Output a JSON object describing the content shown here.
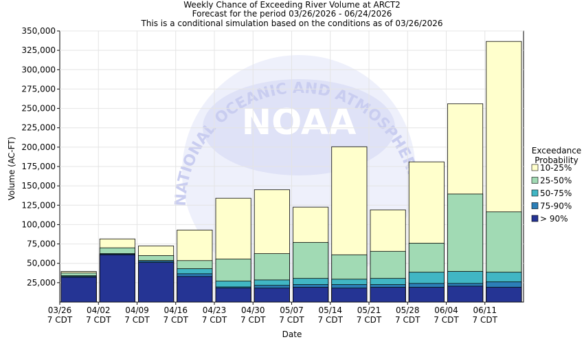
{
  "chart_data": {
    "type": "overlapping-bar",
    "title": "Weekly Chance of Exceeding River Volume at ARCT2",
    "subtitle": "Forecast for the period 03/26/2026 - 06/24/2026",
    "note": "This is a conditional simulation based on the conditions as of 03/26/2026",
    "x_label": "Date",
    "y_label": "Volume (AC-FT)",
    "legend_title": "Exceedance Probability",
    "legend_position": "right",
    "grid": true,
    "watermark": {
      "logo": "NOAA",
      "ring": "NATIONAL OCEANIC AND ATMOSPHERIC ADMINISTRATION"
    },
    "categories": [
      "03/26 7 CDT",
      "04/02 7 CDT",
      "04/09 7 CDT",
      "04/16 7 CDT",
      "04/23 7 CDT",
      "04/30 7 CDT",
      "05/07 7 CDT",
      "05/14 7 CDT",
      "05/21 7 CDT",
      "05/28 7 CDT",
      "06/04 7 CDT",
      "06/11 7 CDT"
    ],
    "series": [
      {
        "name": "10-25%",
        "color": "#ffffcc",
        "values": [
          39500,
          81500,
          72500,
          93000,
          134000,
          145000,
          122500,
          200500,
          119000,
          181000,
          256000,
          336500
        ]
      },
      {
        "name": "25-50%",
        "color": "#a1dab4",
        "values": [
          37500,
          70000,
          60000,
          53500,
          55500,
          62500,
          77000,
          61000,
          65500,
          76000,
          139500,
          116500
        ]
      },
      {
        "name": "50-75%",
        "color": "#41b6c4",
        "values": [
          34000,
          62500,
          53500,
          43000,
          27000,
          28500,
          30500,
          29500,
          30500,
          38500,
          39500,
          38500
        ]
      },
      {
        "name": "75-90%",
        "color": "#2c7fb8",
        "values": [
          33000,
          62000,
          53000,
          36500,
          19500,
          21500,
          22500,
          22500,
          22500,
          24000,
          24000,
          26000
        ]
      },
      {
        "name": "> 90%",
        "color": "#253494",
        "values": [
          32000,
          61000,
          51000,
          33000,
          18000,
          18000,
          19000,
          18000,
          19000,
          19000,
          20500,
          19000
        ]
      }
    ],
    "ylim": [
      0,
      350000
    ],
    "yticks": [
      {
        "value": 25000,
        "label": "25,000"
      },
      {
        "value": 50000,
        "label": "50,000"
      },
      {
        "value": 75000,
        "label": "75,000"
      },
      {
        "value": 100000,
        "label": "100,000"
      },
      {
        "value": 125000,
        "label": "125,000"
      },
      {
        "value": 150000,
        "label": "150,000"
      },
      {
        "value": 175000,
        "label": "175,000"
      },
      {
        "value": 200000,
        "label": "200,000"
      },
      {
        "value": 225000,
        "label": "225,000"
      },
      {
        "value": 250000,
        "label": "250,000"
      },
      {
        "value": 275000,
        "label": "275,000"
      },
      {
        "value": 300000,
        "label": "300,000"
      },
      {
        "value": 325000,
        "label": "325,000"
      },
      {
        "value": 350000,
        "label": "350,000"
      }
    ]
  }
}
